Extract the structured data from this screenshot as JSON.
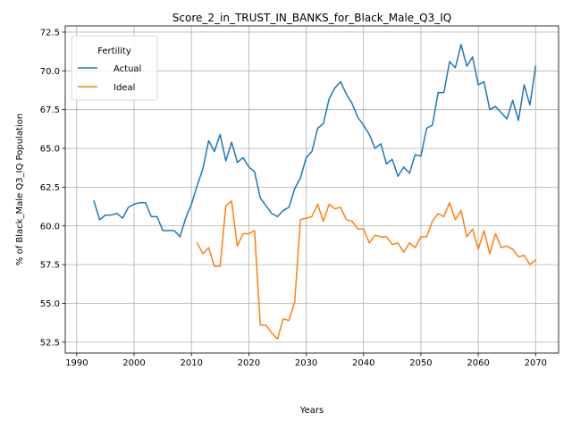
{
  "chart_data": {
    "type": "line",
    "title": "Score_2_in_TRUST_IN_BANKS_for_Black_Male_Q3_IQ",
    "xlabel": "Years",
    "ylabel": "% of Black_Male Q3_IQ Population",
    "xlim": [
      1988,
      2074
    ],
    "ylim": [
      51.8,
      72.9
    ],
    "xticks": [
      1990,
      2000,
      2010,
      2020,
      2030,
      2040,
      2050,
      2060,
      2070
    ],
    "yticks": [
      52.5,
      55.0,
      57.5,
      60.0,
      62.5,
      65.0,
      67.5,
      70.0,
      72.5
    ],
    "ytick_labels": [
      "52.5",
      "55.0",
      "57.5",
      "60.0",
      "62.5",
      "65.0",
      "67.5",
      "70.0",
      "72.5"
    ],
    "grid": true,
    "legend": {
      "title": "Fertility",
      "position": "top-left"
    },
    "series": [
      {
        "name": "Actual",
        "color": "#1f77b4",
        "x": [
          1993,
          1994,
          1995,
          1996,
          1997,
          1998,
          1999,
          2000,
          2001,
          2002,
          2003,
          2004,
          2005,
          2006,
          2007,
          2008,
          2009,
          2010,
          2011,
          2012,
          2013,
          2014,
          2015,
          2016,
          2017,
          2018,
          2019,
          2020,
          2021,
          2022,
          2023,
          2024,
          2025,
          2026,
          2027,
          2028,
          2029,
          2030,
          2031,
          2032,
          2033,
          2034,
          2035,
          2036,
          2037,
          2038,
          2039,
          2040,
          2041,
          2042,
          2043,
          2044,
          2045,
          2046,
          2047,
          2048,
          2049,
          2050,
          2051,
          2052,
          2053,
          2054,
          2055,
          2056,
          2057,
          2058,
          2059,
          2060,
          2061,
          2062,
          2063,
          2064,
          2065,
          2066,
          2067,
          2068,
          2069,
          2070
        ],
        "values": [
          61.6,
          60.4,
          60.7,
          60.7,
          60.8,
          60.5,
          61.2,
          61.4,
          61.5,
          61.5,
          60.6,
          60.6,
          59.7,
          59.7,
          59.7,
          59.3,
          60.5,
          61.4,
          62.6,
          63.7,
          65.5,
          64.8,
          65.9,
          64.2,
          65.4,
          64.1,
          64.4,
          63.8,
          63.5,
          61.8,
          61.3,
          60.8,
          60.6,
          61.0,
          61.2,
          62.4,
          63.1,
          64.4,
          64.8,
          66.3,
          66.6,
          68.2,
          68.9,
          69.3,
          68.5,
          67.9,
          67.0,
          66.5,
          65.9,
          65.0,
          65.3,
          64.0,
          64.3,
          63.2,
          63.8,
          63.4,
          64.6,
          64.5,
          66.3,
          66.5,
          68.6,
          68.6,
          70.6,
          70.2,
          71.7,
          70.3,
          70.9,
          69.1,
          69.3,
          67.5,
          67.7,
          67.3,
          66.9,
          68.1,
          66.8,
          69.1,
          67.8,
          70.3
        ]
      },
      {
        "name": "Ideal",
        "color": "#ff7f0e",
        "x": [
          2011,
          2012,
          2013,
          2014,
          2015,
          2016,
          2017,
          2018,
          2019,
          2020,
          2021,
          2022,
          2023,
          2024,
          2025,
          2026,
          2027,
          2028,
          2029,
          2030,
          2031,
          2032,
          2033,
          2034,
          2035,
          2036,
          2037,
          2038,
          2039,
          2040,
          2041,
          2042,
          2043,
          2044,
          2045,
          2046,
          2047,
          2048,
          2049,
          2050,
          2051,
          2052,
          2053,
          2054,
          2055,
          2056,
          2057,
          2058,
          2059,
          2060,
          2061,
          2062,
          2063,
          2064,
          2065,
          2066,
          2067,
          2068,
          2069,
          2070
        ],
        "values": [
          58.9,
          58.2,
          58.6,
          57.4,
          57.4,
          61.3,
          61.6,
          58.7,
          59.5,
          59.5,
          59.7,
          53.6,
          53.6,
          53.1,
          52.7,
          54.0,
          53.9,
          55.1,
          60.4,
          60.5,
          60.6,
          61.4,
          60.3,
          61.4,
          61.1,
          61.2,
          60.4,
          60.3,
          59.8,
          59.8,
          58.9,
          59.4,
          59.3,
          59.3,
          58.8,
          58.9,
          58.3,
          58.9,
          58.6,
          59.3,
          59.3,
          60.3,
          60.8,
          60.6,
          61.5,
          60.4,
          61.0,
          59.3,
          59.8,
          58.5,
          59.7,
          58.2,
          59.5,
          58.6,
          58.7,
          58.5,
          58.0,
          58.1,
          57.5,
          57.8
        ]
      }
    ]
  }
}
